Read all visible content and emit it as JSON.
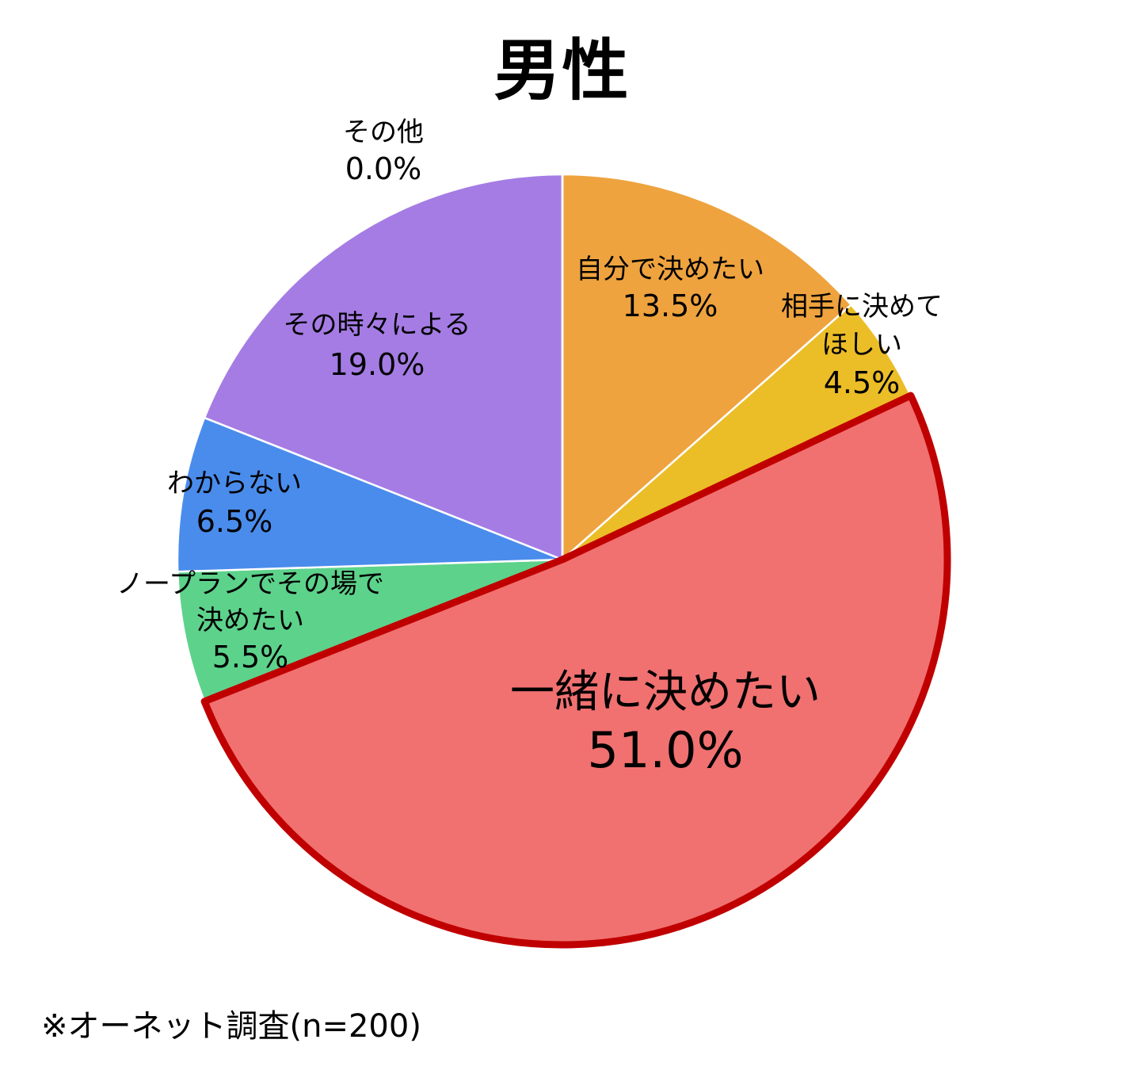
{
  "chart_data": {
    "type": "pie",
    "title": "男性",
    "start_angle_deg": 0,
    "direction": "clockwise",
    "highlighted_slice": "一緒に決めたい",
    "highlight_color": "#c00000",
    "slices": [
      {
        "label": "自分で決めたい",
        "label_lines": [
          "自分で決めたい"
        ],
        "value": 13.5,
        "value_text": "13.5%",
        "color": "#eea33e"
      },
      {
        "label": "相手に決めてほしい",
        "label_lines": [
          "相手に決めて",
          "ほしい"
        ],
        "value": 4.5,
        "value_text": "4.5%",
        "color": "#ebbd27"
      },
      {
        "label": "一緒に決めたい",
        "label_lines": [
          "一緒に決めたい"
        ],
        "value": 51.0,
        "value_text": "51.0%",
        "color": "#f07170"
      },
      {
        "label": "ノープランでその場で決めたい",
        "label_lines": [
          "ノープランでその場で",
          "決めたい"
        ],
        "value": 5.5,
        "value_text": "5.5%",
        "color": "#5dd28b"
      },
      {
        "label": "わからない",
        "label_lines": [
          "わからない"
        ],
        "value": 6.5,
        "value_text": "6.5%",
        "color": "#4a8cec"
      },
      {
        "label": "その時々による",
        "label_lines": [
          "その時々による"
        ],
        "value": 19.0,
        "value_text": "19.0%",
        "color": "#a57ce4"
      },
      {
        "label": "その他",
        "label_lines": [
          "その他"
        ],
        "value": 0.0,
        "value_text": "0.0%",
        "color": "#999999"
      }
    ]
  },
  "footnote": "※オーネット調査(n=200)"
}
